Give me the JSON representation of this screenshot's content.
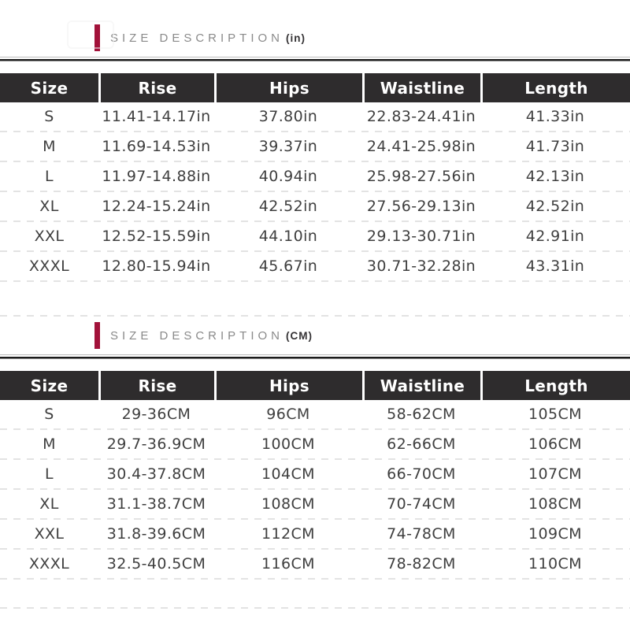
{
  "colors": {
    "accent": "#a2123a",
    "table_header_bg": "#2e2c2d",
    "header_text": "#ffffff",
    "value_text": "#3f3f3f",
    "title_text": "#8a8a8a"
  },
  "sections": [
    {
      "title": "SIZE DESCRIPTION",
      "unit_suffix": "(in)",
      "columns": [
        "Size",
        "Rise",
        "Hips",
        "Waistline",
        "Length"
      ],
      "rows": [
        [
          "S",
          "11.41-14.17in",
          "37.80in",
          "22.83-24.41in",
          "41.33in"
        ],
        [
          "M",
          "11.69-14.53in",
          "39.37in",
          "24.41-25.98in",
          "41.73in"
        ],
        [
          "L",
          "11.97-14.88in",
          "40.94in",
          "25.98-27.56in",
          "42.13in"
        ],
        [
          "XL",
          "12.24-15.24in",
          "42.52in",
          "27.56-29.13in",
          "42.52in"
        ],
        [
          "XXL",
          "12.52-15.59in",
          "44.10in",
          "29.13-30.71in",
          "42.91in"
        ],
        [
          "XXXL",
          "12.80-15.94in",
          "45.67in",
          "30.71-32.28in",
          "43.31in"
        ]
      ]
    },
    {
      "title": "SIZE DESCRIPTION",
      "unit_suffix": "(CM)",
      "columns": [
        "Size",
        "Rise",
        "Hips",
        "Waistline",
        "Length"
      ],
      "rows": [
        [
          "S",
          "29-36CM",
          "96CM",
          "58-62CM",
          "105CM"
        ],
        [
          "M",
          "29.7-36.9CM",
          "100CM",
          "62-66CM",
          "106CM"
        ],
        [
          "L",
          "30.4-37.8CM",
          "104CM",
          "66-70CM",
          "107CM"
        ],
        [
          "XL",
          "31.1-38.7CM",
          "108CM",
          "70-74CM",
          "108CM"
        ],
        [
          "XXL",
          "31.8-39.6CM",
          "112CM",
          "74-78CM",
          "109CM"
        ],
        [
          "XXXL",
          "32.5-40.5CM",
          "116CM",
          "78-82CM",
          "110CM"
        ]
      ]
    }
  ]
}
